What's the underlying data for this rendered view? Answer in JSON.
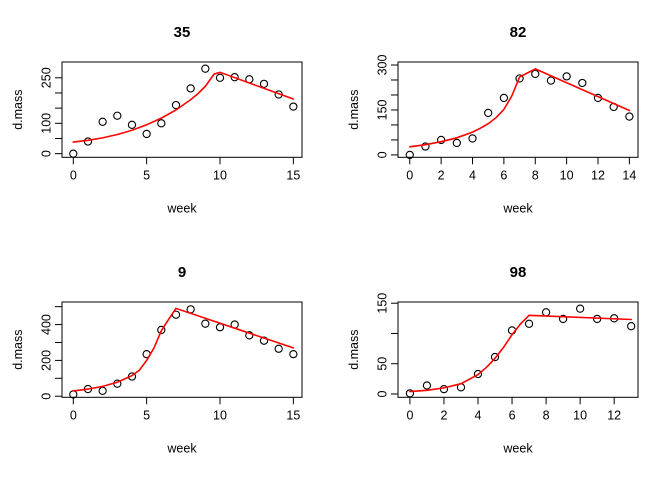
{
  "figure": {
    "background": "#ffffff",
    "point_color": "#000000",
    "fit_line_color": "#ff0000",
    "axis_color": "#000000",
    "grid": "off",
    "layout": "2x2 panel grid of R-style growth curves"
  },
  "chart_data": [
    {
      "type": "scatter",
      "title": "35",
      "xlabel": "week",
      "ylabel": "d.mass",
      "legend": "none",
      "xlim": [
        -0.77,
        15.59
      ],
      "ylim": [
        -12,
        302
      ],
      "x_ticks": [
        0,
        5,
        10,
        15
      ],
      "x_tick_labels": [
        "0",
        "5",
        "10",
        "15"
      ],
      "y_ticks": [
        0,
        50,
        100,
        150,
        200,
        250
      ],
      "y_tick_labels": [
        "0",
        "",
        "100",
        "",
        "",
        "250"
      ],
      "x": [
        0,
        1,
        2,
        3,
        4,
        5,
        6,
        7,
        8,
        9,
        10,
        11,
        12,
        13,
        14,
        15
      ],
      "y": [
        0,
        40,
        105,
        125,
        95,
        65,
        100,
        160,
        215,
        280,
        250,
        252,
        245,
        230,
        195,
        155
      ],
      "fit_line": [
        [
          0,
          38
        ],
        [
          1,
          44
        ],
        [
          2,
          52
        ],
        [
          3,
          63
        ],
        [
          4,
          77
        ],
        [
          5,
          95
        ],
        [
          6,
          117
        ],
        [
          7,
          144
        ],
        [
          8,
          178
        ],
        [
          8.5,
          198
        ],
        [
          9,
          222
        ],
        [
          9.6,
          262
        ],
        [
          10,
          268
        ],
        [
          15,
          180
        ]
      ]
    },
    {
      "type": "scatter",
      "title": "82",
      "xlabel": "week",
      "ylabel": "d.mass",
      "legend": "none",
      "xlim": [
        -0.75,
        14.55
      ],
      "ylim": [
        -8,
        310
      ],
      "x_ticks": [
        0,
        2,
        4,
        6,
        8,
        10,
        12,
        14
      ],
      "x_tick_labels": [
        "0",
        "2",
        "4",
        "6",
        "8",
        "10",
        "12",
        "14"
      ],
      "y_ticks": [
        0,
        50,
        100,
        150,
        200,
        250,
        300
      ],
      "y_tick_labels": [
        "0",
        "",
        "",
        "150",
        "",
        "",
        "300"
      ],
      "x": [
        0,
        1,
        2,
        3,
        4,
        5,
        6,
        7,
        8,
        9,
        10,
        11,
        12,
        13,
        14
      ],
      "y": [
        0,
        28,
        50,
        40,
        55,
        140,
        190,
        255,
        270,
        248,
        262,
        240,
        190,
        160,
        128
      ],
      "fit_line": [
        [
          0,
          27
        ],
        [
          1,
          34
        ],
        [
          2,
          44
        ],
        [
          3,
          57
        ],
        [
          4,
          76
        ],
        [
          4.5,
          89
        ],
        [
          5,
          104
        ],
        [
          5.5,
          124
        ],
        [
          6,
          152
        ],
        [
          6.5,
          196
        ],
        [
          7,
          260
        ],
        [
          8,
          287
        ],
        [
          14,
          148
        ]
      ]
    },
    {
      "type": "scatter",
      "title": "9",
      "xlabel": "week",
      "ylabel": "d.mass",
      "legend": "none",
      "xlim": [
        -0.77,
        15.59
      ],
      "ylim": [
        -6,
        526
      ],
      "x_ticks": [
        0,
        5,
        10,
        15
      ],
      "x_tick_labels": [
        "0",
        "5",
        "10",
        "15"
      ],
      "y_ticks": [
        0,
        100,
        200,
        300,
        400,
        500
      ],
      "y_tick_labels": [
        "0",
        "",
        "200",
        "",
        "400",
        ""
      ],
      "x": [
        0,
        1,
        2,
        3,
        4,
        5,
        6,
        7,
        8,
        9,
        10,
        11,
        12,
        13,
        14,
        15
      ],
      "y": [
        10,
        40,
        30,
        70,
        110,
        235,
        370,
        455,
        485,
        405,
        385,
        400,
        340,
        310,
        265,
        235
      ],
      "fit_line": [
        [
          0,
          30
        ],
        [
          1,
          40
        ],
        [
          2,
          55
        ],
        [
          3,
          78
        ],
        [
          4,
          115
        ],
        [
          4.5,
          145
        ],
        [
          5,
          200
        ],
        [
          5.5,
          270
        ],
        [
          6,
          365
        ],
        [
          6.5,
          430
        ],
        [
          7,
          490
        ],
        [
          15,
          270
        ]
      ]
    },
    {
      "type": "scatter",
      "title": "98",
      "xlabel": "week",
      "ylabel": "d.mass",
      "legend": "none",
      "xlim": [
        -0.7,
        13.4
      ],
      "ylim": [
        -5.5,
        152
      ],
      "x_ticks": [
        0,
        2,
        4,
        6,
        8,
        10,
        12
      ],
      "x_tick_labels": [
        "0",
        "2",
        "4",
        "6",
        "8",
        "10",
        "12"
      ],
      "y_ticks": [
        0,
        50,
        100,
        150
      ],
      "y_tick_labels": [
        "0",
        "50",
        "",
        "150"
      ],
      "x": [
        0,
        1,
        2,
        3,
        4,
        5,
        6,
        7,
        8,
        9,
        10,
        11,
        12,
        13
      ],
      "y": [
        1,
        14,
        8,
        11,
        33,
        61,
        105,
        116,
        135,
        124,
        141,
        124,
        125,
        112
      ],
      "fit_line": [
        [
          0,
          4
        ],
        [
          1,
          6
        ],
        [
          2,
          10
        ],
        [
          3,
          17
        ],
        [
          4,
          32
        ],
        [
          4.5,
          44
        ],
        [
          5,
          59
        ],
        [
          5.5,
          77
        ],
        [
          6,
          98
        ],
        [
          6.5,
          116
        ],
        [
          7,
          130
        ],
        [
          13,
          123
        ]
      ]
    }
  ]
}
